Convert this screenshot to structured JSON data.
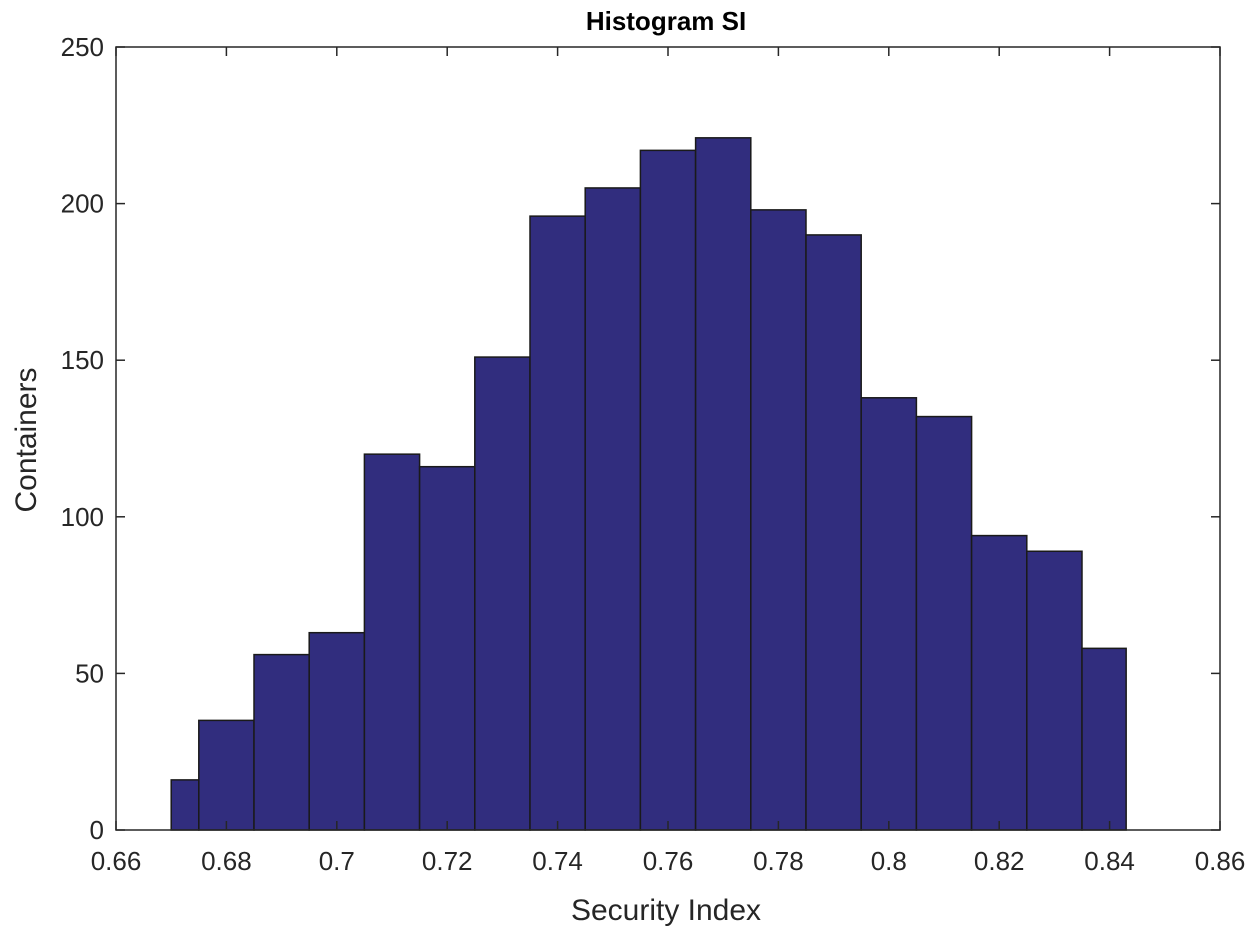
{
  "chart_data": {
    "type": "bar",
    "title": "Histogram SI",
    "xlabel": "Security Index",
    "ylabel": "Containers",
    "xlim": [
      0.66,
      0.86
    ],
    "ylim": [
      0,
      250
    ],
    "x_ticks": [
      "0.66",
      "0.68",
      "0.7",
      "0.72",
      "0.74",
      "0.76",
      "0.78",
      "0.8",
      "0.82",
      "0.84",
      "0.86"
    ],
    "y_ticks": [
      "0",
      "50",
      "100",
      "150",
      "200",
      "250"
    ],
    "bin_edges": [
      0.67,
      0.675,
      0.685,
      0.695,
      0.705,
      0.715,
      0.725,
      0.735,
      0.745,
      0.755,
      0.765,
      0.775,
      0.785,
      0.795,
      0.805,
      0.815,
      0.825,
      0.835,
      0.843
    ],
    "bins": [
      {
        "start": 0.67,
        "end": 0.675,
        "count": 16
      },
      {
        "start": 0.675,
        "end": 0.685,
        "count": 35
      },
      {
        "start": 0.685,
        "end": 0.695,
        "count": 56
      },
      {
        "start": 0.695,
        "end": 0.705,
        "count": 63
      },
      {
        "start": 0.705,
        "end": 0.715,
        "count": 120
      },
      {
        "start": 0.715,
        "end": 0.725,
        "count": 116
      },
      {
        "start": 0.725,
        "end": 0.735,
        "count": 151
      },
      {
        "start": 0.735,
        "end": 0.745,
        "count": 196
      },
      {
        "start": 0.745,
        "end": 0.755,
        "count": 205
      },
      {
        "start": 0.755,
        "end": 0.765,
        "count": 217
      },
      {
        "start": 0.765,
        "end": 0.775,
        "count": 221
      },
      {
        "start": 0.775,
        "end": 0.785,
        "count": 198
      },
      {
        "start": 0.785,
        "end": 0.795,
        "count": 190
      },
      {
        "start": 0.795,
        "end": 0.805,
        "count": 138
      },
      {
        "start": 0.805,
        "end": 0.815,
        "count": 132
      },
      {
        "start": 0.815,
        "end": 0.825,
        "count": 94
      },
      {
        "start": 0.825,
        "end": 0.835,
        "count": 89
      },
      {
        "start": 0.835,
        "end": 0.843,
        "count": 58
      }
    ],
    "grid": false,
    "bar_color": "#312d7e",
    "edge_color": "#1a1a1a"
  }
}
